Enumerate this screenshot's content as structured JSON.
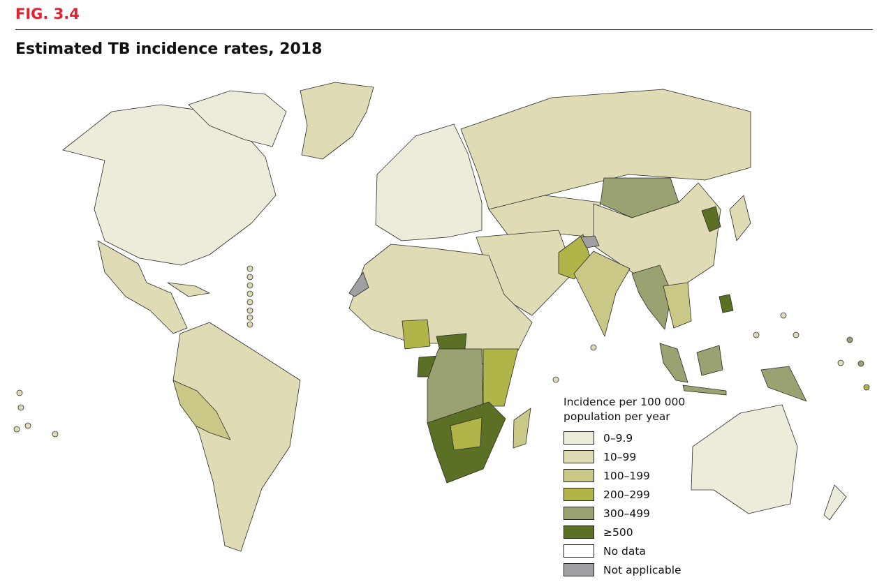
{
  "figure_label": "FIG. 3.4",
  "title": "Estimated TB incidence rates, 2018",
  "legend": {
    "title_line1": "Incidence per 100 000",
    "title_line2": "population per year",
    "items": [
      {
        "label": "0–9.9",
        "color": "#edebda"
      },
      {
        "label": "10–99",
        "color": "#dfdcb5"
      },
      {
        "label": "100–199",
        "color": "#c9c887"
      },
      {
        "label": "200–299",
        "color": "#b1b449"
      },
      {
        "label": "300–499",
        "color": "#9aa272"
      },
      {
        "label": "≥500",
        "color": "#5b6f25"
      },
      {
        "label": "No data",
        "color": "#ffffff"
      },
      {
        "label": "Not applicable",
        "color": "#a09fa2"
      }
    ]
  }
}
